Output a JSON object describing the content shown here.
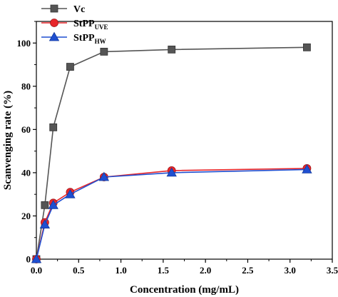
{
  "chart_data": {
    "type": "line",
    "xlabel": "Concentration (mg/mL)",
    "ylabel": "Scanvenging rate (%)",
    "xlim": [
      0,
      3.5
    ],
    "ylim": [
      0,
      110
    ],
    "xticks": [
      "0.0",
      "0.5",
      "1.0",
      "1.5",
      "2.0",
      "2.5",
      "3.0",
      "3.5"
    ],
    "yticks": [
      "0",
      "20",
      "40",
      "60",
      "80",
      "100"
    ],
    "grid": false,
    "legend_position": "top-left",
    "series": [
      {
        "name": "Vc",
        "name_sub": "",
        "marker": "square",
        "color": "#555555",
        "x": [
          0,
          0.1,
          0.2,
          0.4,
          0.8,
          1.6,
          3.2
        ],
        "y": [
          0,
          25,
          61,
          89,
          96,
          97,
          98
        ]
      },
      {
        "name": "StPP",
        "name_sub": "UVE",
        "marker": "circle",
        "color": "#e8262a",
        "x": [
          0,
          0.1,
          0.2,
          0.4,
          0.8,
          1.6,
          3.2
        ],
        "y": [
          0,
          17,
          26,
          31,
          38,
          41,
          42
        ]
      },
      {
        "name": "StPP",
        "name_sub": "HW",
        "marker": "triangle",
        "color": "#1f4fd1",
        "x": [
          0,
          0.1,
          0.2,
          0.4,
          0.8,
          1.6,
          3.2
        ],
        "y": [
          0,
          16,
          25,
          30,
          38,
          40,
          41.5
        ]
      }
    ]
  }
}
